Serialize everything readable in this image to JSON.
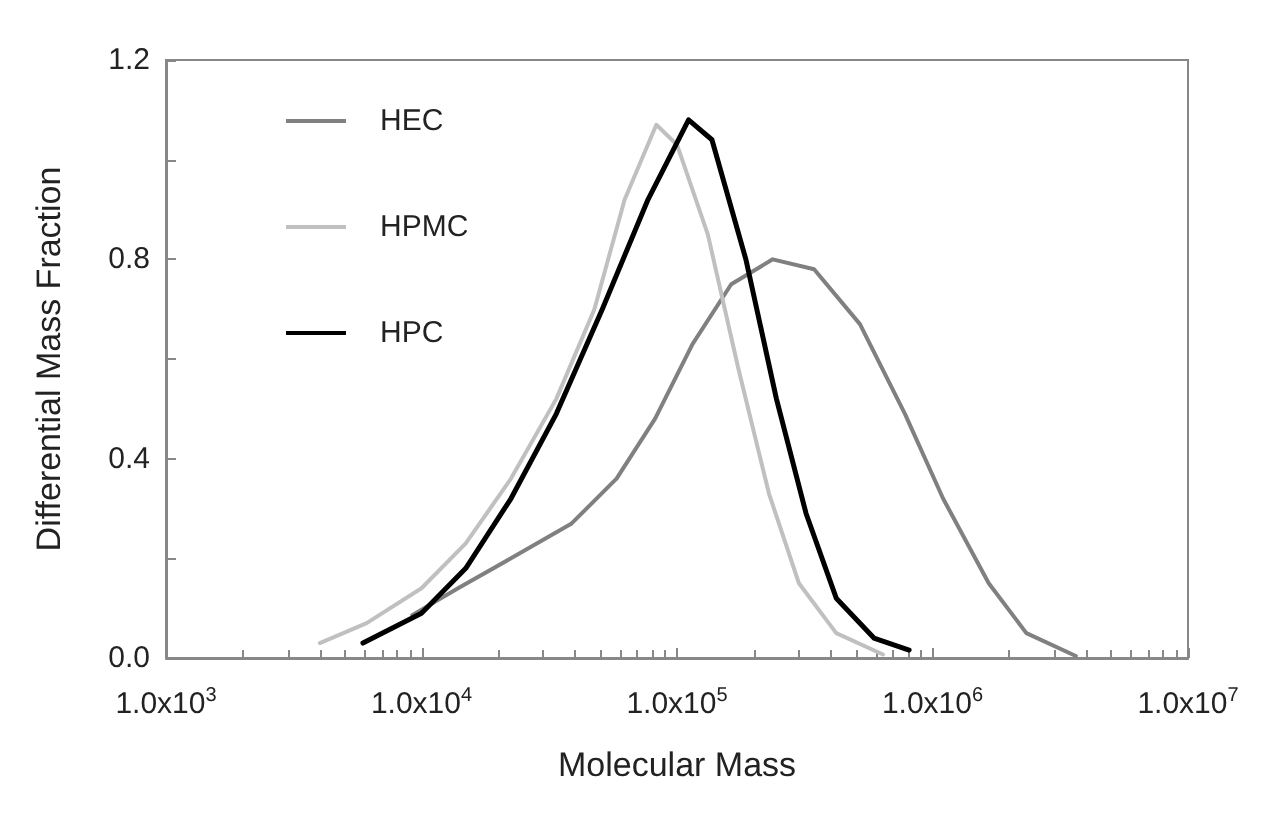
{
  "chart_data": {
    "type": "line",
    "xlabel": "Molecular Mass",
    "ylabel": "Differential Mass Fraction",
    "log": "x",
    "xlim": [
      1000,
      10000000
    ],
    "xticks": [
      {
        "value": 1000,
        "label": "1.0x10$^{3}$"
      },
      {
        "value": 10000,
        "label": "1.0x10$^{4}$"
      },
      {
        "value": 100000,
        "label": "1.0x10$^{5}$"
      },
      {
        "value": 1000000,
        "label": "1.0x10$^{6}$"
      },
      {
        "value": 10000000,
        "label": "1.0x10$^{7}$"
      }
    ],
    "ylim": [
      0,
      1.2
    ],
    "yticks": [
      {
        "value": 0,
        "label": "0.0"
      },
      {
        "value": 0.2,
        "label": null
      },
      0.4,
      {
        "value": 0.6,
        "label": null
      },
      0.8,
      {
        "value": 1.0,
        "label": null
      },
      1.2
    ],
    "grid": false,
    "legend": "top left",
    "marker": "none",
    "line_style": "solid",
    "series": [
      {
        "name": "HEC",
        "color": "#808080",
        "x": [
          9200,
          13900,
          22400,
          38700,
          58000,
          82000,
          115000,
          163000,
          237000,
          344000,
          520000,
          780000,
          1100000,
          1660000,
          2330000,
          3640000
        ],
        "values": [
          0.086,
          0.14,
          0.2,
          0.27,
          0.36,
          0.48,
          0.63,
          0.75,
          0.8,
          0.78,
          0.67,
          0.49,
          0.32,
          0.15,
          0.05,
          0.004
        ]
      },
      {
        "name": "HPMC",
        "color": "#c0c0c0",
        "x": [
          4000,
          6100,
          10000,
          14900,
          22400,
          33700,
          47500,
          62400,
          83000,
          100000,
          132000,
          174000,
          229000,
          300000,
          420000,
          640000
        ],
        "values": [
          0.03,
          0.07,
          0.14,
          0.23,
          0.36,
          0.52,
          0.7,
          0.92,
          1.07,
          1.03,
          0.85,
          0.58,
          0.33,
          0.15,
          0.05,
          0.007
        ]
      },
      {
        "name": "HPC",
        "color": "#000000",
        "x": [
          5900,
          10000,
          14900,
          22400,
          33700,
          51000,
          77000,
          111000,
          137000,
          186000,
          245000,
          320000,
          420000,
          590000,
          810000
        ],
        "values": [
          0.03,
          0.09,
          0.18,
          0.32,
          0.49,
          0.7,
          0.92,
          1.08,
          1.04,
          0.8,
          0.52,
          0.29,
          0.12,
          0.04,
          0.016
        ]
      }
    ]
  }
}
